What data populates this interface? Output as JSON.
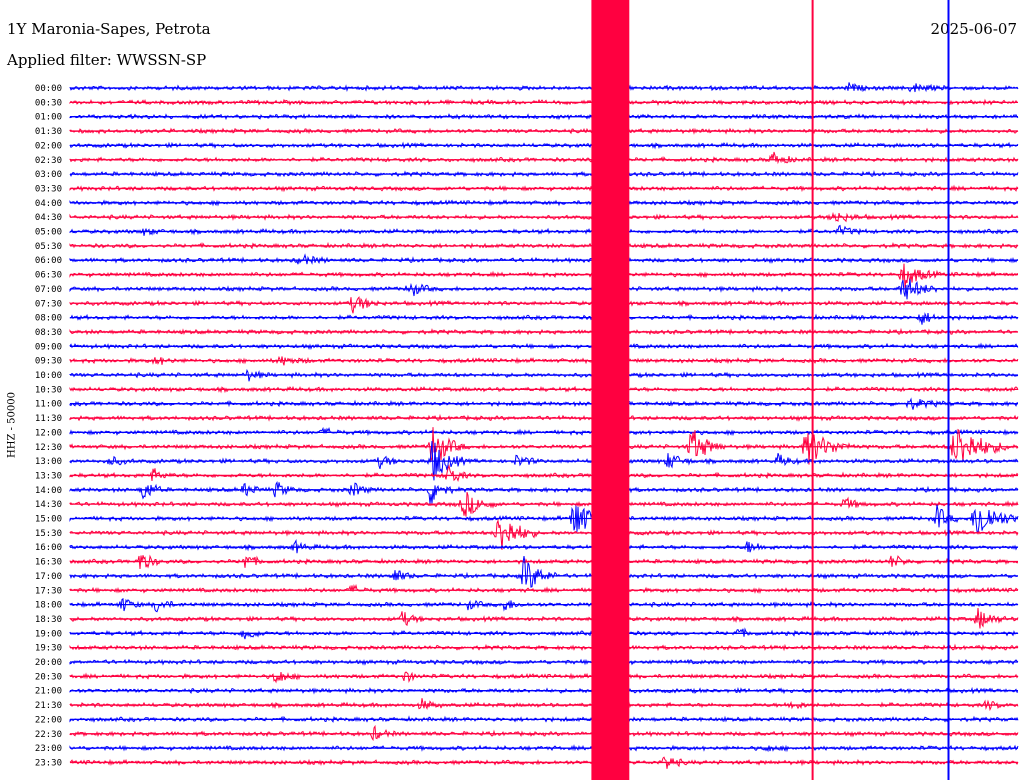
{
  "header": {
    "station": "1Y Maronia-Sapes, Petrota",
    "date": "2025-06-07",
    "filter": "Applied filter: WWSSN-SP",
    "channel": "HHZ - 50000"
  },
  "colors": {
    "trace_a": "#0000ff",
    "trace_b": "#ff0040",
    "background": "#ffffff",
    "text": "#000000"
  },
  "chart_data": {
    "type": "line",
    "title": "1Y Maronia-Sapes, Petrota",
    "ylabel": "HHZ - 50000",
    "grid": false,
    "legend": "none",
    "row_minutes": 30,
    "row_labels": [
      "00:00",
      "00:30",
      "01:00",
      "01:30",
      "02:00",
      "02:30",
      "03:00",
      "03:30",
      "04:00",
      "04:30",
      "05:00",
      "05:30",
      "06:00",
      "06:30",
      "07:00",
      "07:30",
      "08:00",
      "08:30",
      "09:00",
      "09:30",
      "10:00",
      "10:30",
      "11:00",
      "11:30",
      "12:00",
      "12:30",
      "13:00",
      "13:30",
      "14:00",
      "14:30",
      "15:00",
      "15:30",
      "16:00",
      "16:30",
      "17:00",
      "17:30",
      "18:00",
      "18:30",
      "19:00",
      "19:30",
      "20:00",
      "20:30",
      "21:00",
      "21:30",
      "22:00",
      "22:30",
      "23:00",
      "23:30"
    ],
    "row_colors": [
      "blue",
      "red",
      "blue",
      "red",
      "blue",
      "red",
      "blue",
      "red",
      "blue",
      "red",
      "blue",
      "red",
      "blue",
      "red",
      "blue",
      "red",
      "blue",
      "red",
      "blue",
      "red",
      "blue",
      "red",
      "blue",
      "red",
      "blue",
      "red",
      "blue",
      "red",
      "blue",
      "red",
      "blue",
      "red",
      "blue",
      "red",
      "blue",
      "red",
      "blue",
      "red",
      "blue",
      "red",
      "blue",
      "red",
      "blue",
      "red",
      "blue",
      "red",
      "blue",
      "red"
    ],
    "events": [
      {
        "row": 0,
        "minute": 24.5,
        "amp": 0.8,
        "dur": 0.8
      },
      {
        "row": 0,
        "minute": 26.5,
        "amp": 0.8,
        "dur": 1.2
      },
      {
        "row": 5,
        "minute": 22.1,
        "amp": 1.4,
        "dur": 0.9
      },
      {
        "row": 9,
        "minute": 24.0,
        "amp": 1.0,
        "dur": 1.2
      },
      {
        "row": 10,
        "minute": 24.2,
        "amp": 0.8,
        "dur": 1.0
      },
      {
        "row": 10,
        "minute": 2.2,
        "amp": 0.5,
        "dur": 1.0
      },
      {
        "row": 12,
        "minute": 7.1,
        "amp": 0.9,
        "dur": 1.2
      },
      {
        "row": 13,
        "minute": 26.2,
        "amp": 2.3,
        "dur": 1.3
      },
      {
        "row": 14,
        "minute": 10.6,
        "amp": 1.4,
        "dur": 1.0
      },
      {
        "row": 14,
        "minute": 26.2,
        "amp": 2.2,
        "dur": 1.4
      },
      {
        "row": 15,
        "minute": 8.8,
        "amp": 1.6,
        "dur": 1.1
      },
      {
        "row": 16,
        "minute": 26.8,
        "amp": 1.2,
        "dur": 0.9
      },
      {
        "row": 19,
        "minute": 2.6,
        "amp": 0.8,
        "dur": 0.8
      },
      {
        "row": 19,
        "minute": 6.5,
        "amp": 0.7,
        "dur": 1.2
      },
      {
        "row": 20,
        "minute": 5.5,
        "amp": 1.0,
        "dur": 0.8
      },
      {
        "row": 22,
        "minute": 26.4,
        "amp": 0.8,
        "dur": 1.5
      },
      {
        "row": 24,
        "minute": 7.9,
        "amp": 0.6,
        "dur": 0.9
      },
      {
        "row": 25,
        "minute": 11.3,
        "amp": 4.0,
        "dur": 1.2
      },
      {
        "row": 25,
        "minute": 19.5,
        "amp": 3.5,
        "dur": 1.2
      },
      {
        "row": 25,
        "minute": 23.1,
        "amp": 3.0,
        "dur": 1.8
      },
      {
        "row": 25,
        "minute": 27.8,
        "amp": 4.0,
        "dur": 2.0
      },
      {
        "row": 26,
        "minute": 1.1,
        "amp": 0.8,
        "dur": 1.0
      },
      {
        "row": 26,
        "minute": 9.7,
        "amp": 1.2,
        "dur": 0.8
      },
      {
        "row": 26,
        "minute": 11.3,
        "amp": 4.0,
        "dur": 1.2
      },
      {
        "row": 26,
        "minute": 14.0,
        "amp": 1.0,
        "dur": 1.0
      },
      {
        "row": 26,
        "minute": 18.8,
        "amp": 1.5,
        "dur": 1.0
      },
      {
        "row": 26,
        "minute": 22.3,
        "amp": 1.2,
        "dur": 0.8
      },
      {
        "row": 27,
        "minute": 2.5,
        "amp": 1.2,
        "dur": 0.8
      },
      {
        "row": 27,
        "minute": 11.8,
        "amp": 2.5,
        "dur": 0.8
      },
      {
        "row": 28,
        "minute": 2.2,
        "amp": 2.2,
        "dur": 0.8
      },
      {
        "row": 28,
        "minute": 5.4,
        "amp": 1.2,
        "dur": 0.8
      },
      {
        "row": 28,
        "minute": 6.4,
        "amp": 1.5,
        "dur": 0.8
      },
      {
        "row": 28,
        "minute": 8.8,
        "amp": 1.5,
        "dur": 0.8
      },
      {
        "row": 28,
        "minute": 11.3,
        "amp": 3.0,
        "dur": 0.8
      },
      {
        "row": 29,
        "minute": 12.3,
        "amp": 2.5,
        "dur": 1.2
      },
      {
        "row": 29,
        "minute": 24.4,
        "amp": 1.2,
        "dur": 0.8
      },
      {
        "row": 30,
        "minute": 15.8,
        "amp": 4.0,
        "dur": 1.2
      },
      {
        "row": 30,
        "minute": 27.3,
        "amp": 2.5,
        "dur": 0.8
      },
      {
        "row": 30,
        "minute": 28.5,
        "amp": 4.0,
        "dur": 1.5
      },
      {
        "row": 31,
        "minute": 13.4,
        "amp": 4.0,
        "dur": 1.4
      },
      {
        "row": 32,
        "minute": 7.0,
        "amp": 1.0,
        "dur": 0.8
      },
      {
        "row": 32,
        "minute": 21.3,
        "amp": 1.0,
        "dur": 1.0
      },
      {
        "row": 33,
        "minute": 2.1,
        "amp": 2.0,
        "dur": 0.8
      },
      {
        "row": 33,
        "minute": 5.4,
        "amp": 1.5,
        "dur": 0.8
      },
      {
        "row": 33,
        "minute": 25.9,
        "amp": 1.2,
        "dur": 0.8
      },
      {
        "row": 34,
        "minute": 10.1,
        "amp": 1.5,
        "dur": 0.8
      },
      {
        "row": 34,
        "minute": 14.2,
        "amp": 3.5,
        "dur": 1.2
      },
      {
        "row": 35,
        "minute": 8.8,
        "amp": 0.8,
        "dur": 0.8
      },
      {
        "row": 36,
        "minute": 1.5,
        "amp": 1.4,
        "dur": 0.8
      },
      {
        "row": 36,
        "minute": 2.6,
        "amp": 1.4,
        "dur": 0.8
      },
      {
        "row": 36,
        "minute": 12.5,
        "amp": 0.8,
        "dur": 0.8
      },
      {
        "row": 36,
        "minute": 13.6,
        "amp": 1.2,
        "dur": 0.8
      },
      {
        "row": 37,
        "minute": 10.4,
        "amp": 1.4,
        "dur": 0.8
      },
      {
        "row": 37,
        "minute": 28.6,
        "amp": 2.0,
        "dur": 1.0
      },
      {
        "row": 38,
        "minute": 5.4,
        "amp": 1.5,
        "dur": 0.8
      },
      {
        "row": 38,
        "minute": 21.0,
        "amp": 0.8,
        "dur": 0.8
      },
      {
        "row": 41,
        "minute": 6.4,
        "amp": 1.5,
        "dur": 0.8
      },
      {
        "row": 41,
        "minute": 10.5,
        "amp": 1.2,
        "dur": 0.6
      },
      {
        "row": 43,
        "minute": 11.0,
        "amp": 1.0,
        "dur": 0.8
      },
      {
        "row": 43,
        "minute": 22.7,
        "amp": 0.8,
        "dur": 0.8
      },
      {
        "row": 43,
        "minute": 28.9,
        "amp": 0.8,
        "dur": 0.8
      },
      {
        "row": 45,
        "minute": 9.5,
        "amp": 1.2,
        "dur": 0.8
      },
      {
        "row": 46,
        "minute": 21.9,
        "amp": 0.6,
        "dur": 0.8
      },
      {
        "row": 47,
        "minute": 18.7,
        "amp": 1.6,
        "dur": 0.8
      }
    ],
    "saturated_block": {
      "row_start": 0,
      "row_end": 47,
      "minute_start": 16.5,
      "minute_end": 17.7
    },
    "spikes": [
      {
        "minute": 17.6,
        "row_start": 0,
        "row_end": 47
      },
      {
        "minute": 23.5,
        "row_start": 0,
        "row_end": 47
      },
      {
        "minute": 27.8,
        "row_start": 0,
        "row_end": 47
      }
    ]
  }
}
